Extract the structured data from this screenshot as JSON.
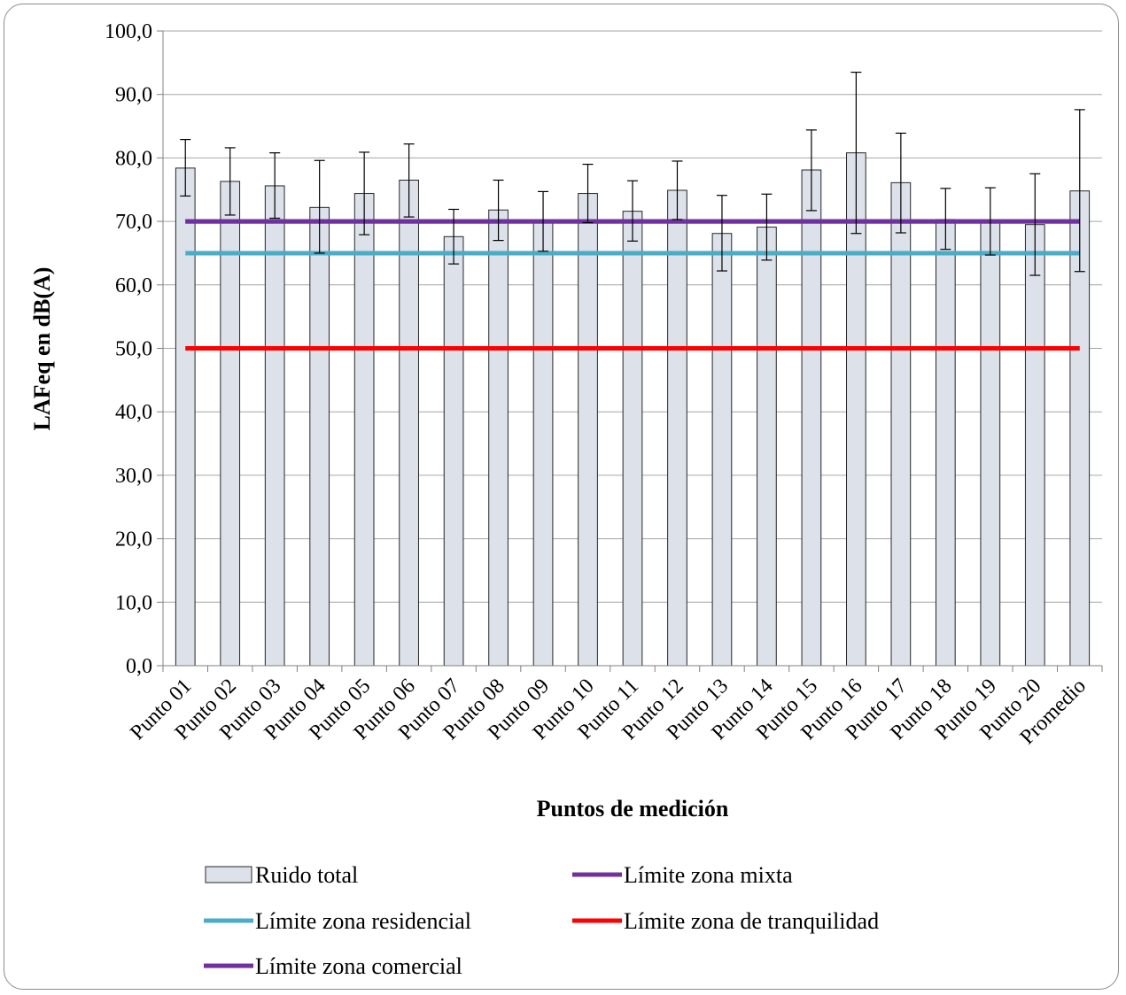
{
  "chart_data": {
    "type": "bar",
    "xlabel": "Puntos de medición",
    "ylabel": "LAFeq en dB(A)",
    "ylim": [
      0,
      100
    ],
    "yticks": [
      "0,0",
      "10,0",
      "20,0",
      "30,0",
      "40,0",
      "50,0",
      "60,0",
      "70,0",
      "80,0",
      "90,0",
      "100,0"
    ],
    "grid": true,
    "legend_position": "bottom",
    "categories": [
      "Punto 01",
      "Punto 02",
      "Punto 03",
      "Punto 04",
      "Punto 05",
      "Punto 06",
      "Punto 07",
      "Punto 08",
      "Punto 09",
      "Punto 10",
      "Punto 11",
      "Punto 12",
      "Punto 13",
      "Punto 14",
      "Punto 15",
      "Punto 16",
      "Punto 17",
      "Punto 18",
      "Punto 19",
      "Punto 20",
      "Promedio"
    ],
    "series": [
      {
        "name": "Ruido total",
        "kind": "bar",
        "color": "#dde2ea",
        "values": [
          78.4,
          76.3,
          75.6,
          72.2,
          74.4,
          76.5,
          67.6,
          71.8,
          70.0,
          74.4,
          71.6,
          74.9,
          68.1,
          69.1,
          78.1,
          80.8,
          76.1,
          70.3,
          70.0,
          69.5,
          74.8
        ],
        "error_high": [
          82.9,
          81.6,
          80.8,
          79.6,
          80.9,
          82.2,
          71.9,
          76.5,
          74.7,
          79.0,
          76.4,
          79.5,
          74.1,
          74.3,
          84.4,
          93.5,
          83.9,
          75.2,
          75.3,
          77.5,
          87.6
        ],
        "error_low": [
          74.0,
          71.0,
          70.5,
          65.0,
          67.9,
          70.7,
          63.3,
          67.0,
          65.3,
          69.8,
          66.9,
          70.3,
          62.2,
          63.9,
          71.7,
          68.1,
          68.2,
          65.6,
          64.7,
          61.5,
          62.1
        ]
      },
      {
        "name": "Límite zona mixta",
        "kind": "line",
        "color": "#7030a0",
        "value": 70
      },
      {
        "name": "Límite zona residencial",
        "kind": "line",
        "color": "#4bacc6",
        "value": 65
      },
      {
        "name": "Límite zona de tranquilidad",
        "kind": "line",
        "color": "#ff0000",
        "value": 50
      },
      {
        "name": "Límite zona comercial",
        "kind": "line",
        "color": "#7030a0",
        "value": 70
      }
    ]
  }
}
